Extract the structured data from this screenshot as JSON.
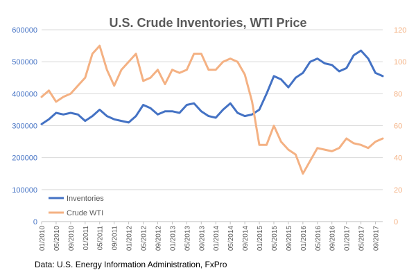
{
  "chart_data": {
    "type": "line",
    "title": "U.S. Crude Inventories, WTI Price",
    "source": "Data: U.S. Energy Information Administration, FxPro",
    "x_ticks": [
      "01/2010",
      "05/2010",
      "09/2010",
      "01/2011",
      "05/2011",
      "09/2011",
      "01/2012",
      "05/2012",
      "09/2012",
      "01/2013",
      "05/2013",
      "09/2013",
      "01/2014",
      "05/2014",
      "09/2014",
      "01/2015",
      "05/2015",
      "09/2015",
      "01/2016",
      "05/2016",
      "09/2016",
      "01/2017",
      "05/2017",
      "09/2017"
    ],
    "y_left": {
      "ylim": [
        0,
        600000
      ],
      "ticks": [
        "0",
        "100000",
        "200000",
        "300000",
        "400000",
        "500000",
        "600000"
      ],
      "color": "#4472c4"
    },
    "y_right": {
      "ylim": [
        0,
        120
      ],
      "ticks": [
        "0",
        "20",
        "40",
        "60",
        "80",
        "100",
        "120"
      ],
      "color": "#f4b183"
    },
    "legend_placement": "bottom-left",
    "series": [
      {
        "name": "Inventories",
        "axis": "left",
        "color": "#4472c4",
        "x": [
          "01/2010",
          "03/2010",
          "05/2010",
          "07/2010",
          "09/2010",
          "11/2010",
          "01/2011",
          "03/2011",
          "05/2011",
          "07/2011",
          "09/2011",
          "11/2011",
          "01/2012",
          "03/2012",
          "05/2012",
          "07/2012",
          "09/2012",
          "11/2012",
          "01/2013",
          "03/2013",
          "05/2013",
          "07/2013",
          "09/2013",
          "11/2013",
          "01/2014",
          "03/2014",
          "05/2014",
          "07/2014",
          "09/2014",
          "11/2014",
          "01/2015",
          "03/2015",
          "05/2015",
          "07/2015",
          "09/2015",
          "11/2015",
          "01/2016",
          "03/2016",
          "05/2016",
          "07/2016",
          "09/2016",
          "11/2016",
          "01/2017",
          "03/2017",
          "05/2017",
          "07/2017",
          "09/2017",
          "11/2017"
        ],
        "values": [
          305000,
          320000,
          340000,
          335000,
          340000,
          335000,
          315000,
          330000,
          350000,
          330000,
          320000,
          315000,
          310000,
          330000,
          365000,
          355000,
          335000,
          345000,
          345000,
          340000,
          365000,
          370000,
          345000,
          330000,
          325000,
          350000,
          370000,
          340000,
          330000,
          335000,
          350000,
          400000,
          455000,
          445000,
          420000,
          450000,
          465000,
          500000,
          510000,
          495000,
          490000,
          470000,
          480000,
          520000,
          535000,
          510000,
          465000,
          455000
        ]
      },
      {
        "name": "Crude WTI",
        "axis": "right",
        "color": "#f4b183",
        "x": [
          "01/2010",
          "03/2010",
          "05/2010",
          "07/2010",
          "09/2010",
          "11/2010",
          "01/2011",
          "03/2011",
          "05/2011",
          "07/2011",
          "09/2011",
          "11/2011",
          "01/2012",
          "03/2012",
          "05/2012",
          "07/2012",
          "09/2012",
          "11/2012",
          "01/2013",
          "03/2013",
          "05/2013",
          "07/2013",
          "09/2013",
          "11/2013",
          "01/2014",
          "03/2014",
          "05/2014",
          "07/2014",
          "09/2014",
          "11/2014",
          "01/2015",
          "03/2015",
          "05/2015",
          "07/2015",
          "09/2015",
          "11/2015",
          "01/2016",
          "03/2016",
          "05/2016",
          "07/2016",
          "09/2016",
          "11/2016",
          "01/2017",
          "03/2017",
          "05/2017",
          "07/2017",
          "09/2017",
          "11/2017"
        ],
        "values": [
          78,
          82,
          75,
          78,
          80,
          85,
          90,
          105,
          110,
          95,
          85,
          95,
          100,
          105,
          88,
          90,
          95,
          86,
          95,
          93,
          95,
          105,
          105,
          95,
          95,
          100,
          102,
          100,
          92,
          75,
          48,
          48,
          60,
          50,
          45,
          42,
          30,
          38,
          46,
          45,
          44,
          46,
          52,
          49,
          48,
          46,
          50,
          52
        ]
      }
    ]
  }
}
